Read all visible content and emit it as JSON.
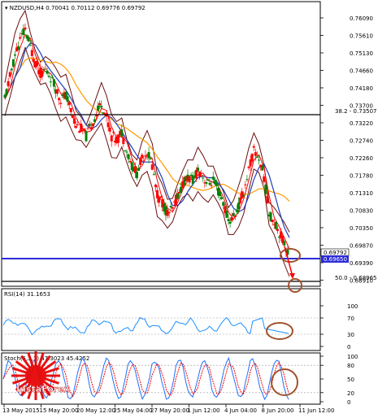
{
  "main_panel": {
    "header": "▾ NZDUSD,H4  0.70041  0.70112  0.69776  0.69792",
    "price_ticks": [
      "0.76090",
      "0.75610",
      "0.75130",
      "0.74660",
      "0.74180",
      "0.73700",
      "0.73220",
      "0.72740",
      "0.72260",
      "0.71780",
      "0.71310",
      "0.70830",
      "0.70350",
      "0.69870",
      "0.69390",
      "0.68910"
    ],
    "fib_382_label": "38.2 - 0.73507",
    "fib_500_label": "50.0 - 0.68965",
    "current_price_label": "0.69792",
    "support_price_label": "0.69650"
  },
  "rsi_panel": {
    "header": "RSI(14) 31.1653",
    "ticks": [
      "100",
      "70",
      "30",
      "0"
    ]
  },
  "stoch_panel": {
    "header": "Stoch(5,3,3) 47.3023 45.4252",
    "ticks": [
      "100",
      "80",
      "50",
      "20",
      "0"
    ]
  },
  "time_axis": {
    "labels": [
      "13 May 2015",
      "15 May 20:00",
      "20 May 12:00",
      "25 May 04:00",
      "27 May 20:00",
      "1 Jun 12:00",
      "4 Jun 04:00",
      "8 Jun 20:00",
      "11 Jun 12:00"
    ]
  },
  "watermark": {
    "text": "InstaForex"
  },
  "colors": {
    "bull_candle": "#008000",
    "bear_candle": "#ff0000",
    "bollinger": "#6b0f0f",
    "ma_fast": "#ff0000",
    "ma_mid": "#1f3fbf",
    "ma_slow": "#ff9900",
    "support_line": "#2b2bd9",
    "rsi_line": "#1e90ff",
    "stoch_main": "#1e6fff",
    "stoch_signal": "#ff0000",
    "annotation": "#a0522d"
  },
  "chart_data": {
    "type": "candlestick",
    "symbol": "NZDUSD",
    "timeframe": "H4",
    "last_ohlc": [
      0.70041,
      0.70112,
      0.69776,
      0.69792
    ],
    "ylim": [
      0.6868,
      0.763
    ],
    "horizontal_levels": [
      {
        "label": "38.2",
        "value": 0.73507
      },
      {
        "label": "50.0",
        "value": 0.68965
      },
      {
        "label": "support",
        "value": 0.6965
      }
    ],
    "close_path": [
      0.737,
      0.743,
      0.749,
      0.753,
      0.756,
      0.751,
      0.747,
      0.744,
      0.745,
      0.743,
      0.74,
      0.737,
      0.738,
      0.734,
      0.73,
      0.729,
      0.727,
      0.73,
      0.733,
      0.736,
      0.732,
      0.727,
      0.726,
      0.728,
      0.723,
      0.719,
      0.717,
      0.721,
      0.723,
      0.719,
      0.711,
      0.709,
      0.706,
      0.707,
      0.711,
      0.714,
      0.716,
      0.715,
      0.718,
      0.716,
      0.714,
      0.715,
      0.712,
      0.709,
      0.704,
      0.705,
      0.708,
      0.712,
      0.718,
      0.723,
      0.721,
      0.716,
      0.706,
      0.704,
      0.701,
      0.698,
      0.695
    ],
    "rsi": {
      "period": 14,
      "last": 31.1653,
      "levels": [
        70,
        30
      ]
    },
    "stochastic": {
      "params": [
        5,
        3,
        3
      ],
      "main": 47.3023,
      "signal": 45.4252,
      "levels": [
        80,
        20
      ]
    }
  }
}
